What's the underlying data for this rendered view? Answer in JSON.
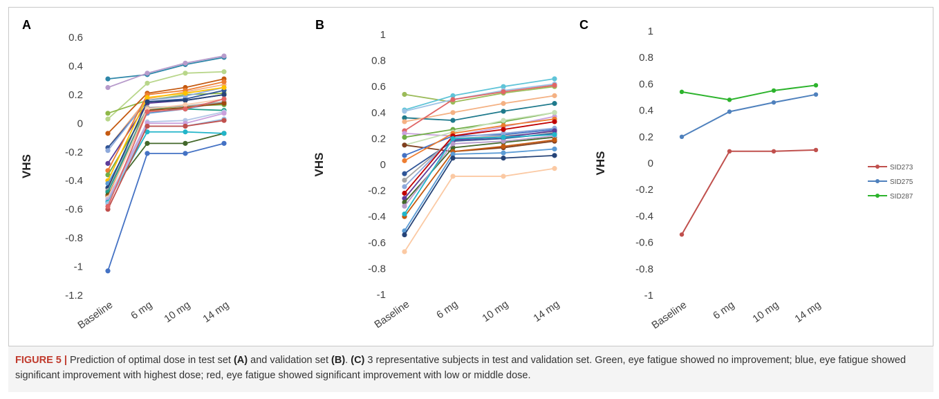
{
  "caption": {
    "label": "FIGURE 5 |",
    "s1": "Prediction of optimal dose in test set ",
    "ref_a": "(A)",
    "s2": " and validation set ",
    "ref_b": "(B)",
    "s3": ". ",
    "ref_c": "(C)",
    "s4": " 3 representative subjects in test and validation set. Green, eye fatigue showed no improvement; blue, eye fatigue showed significant improvement with highest dose; red, eye fatigue showed significant improvement with low or middle dose."
  },
  "chart_data": [
    {
      "panel": "A",
      "type": "line",
      "ylabel": "VHS",
      "ylim": [
        -1.2,
        0.6
      ],
      "ytick_step": 0.2,
      "yticks": [
        "0.6",
        "0.4",
        "0.2",
        "0",
        "-0.2",
        "-0.4",
        "-0.6",
        "-0.8",
        "-1",
        "-1.2"
      ],
      "categories": [
        "Baseline",
        "6 mg",
        "10 mg",
        "14 mg"
      ],
      "grid": false,
      "series": [
        {
          "color": "#2E86A8",
          "values": [
            0.31,
            0.34,
            0.41,
            0.46
          ]
        },
        {
          "color": "#B79BCB",
          "values": [
            0.25,
            0.35,
            0.42,
            0.47
          ]
        },
        {
          "color": "#B8D68A",
          "values": [
            0.03,
            0.28,
            0.35,
            0.36
          ]
        },
        {
          "color": "#8FB849",
          "values": [
            0.07,
            0.16,
            0.2,
            0.21
          ]
        },
        {
          "color": "#C55A11",
          "values": [
            -0.07,
            0.21,
            0.25,
            0.31
          ]
        },
        {
          "color": "#F4B183",
          "values": [
            -0.17,
            0.17,
            0.22,
            0.27
          ]
        },
        {
          "color": "#2F5597",
          "values": [
            -0.17,
            0.15,
            0.17,
            0.23
          ]
        },
        {
          "color": "#8EA9DB",
          "values": [
            -0.19,
            0.16,
            0.19,
            0.25
          ]
        },
        {
          "color": "#5E3C99",
          "values": [
            -0.28,
            0.14,
            0.16,
            0.2
          ]
        },
        {
          "color": "#ED7D31",
          "values": [
            -0.33,
            0.2,
            0.23,
            0.29
          ]
        },
        {
          "color": "#70AD47",
          "values": [
            -0.36,
            0.1,
            0.12,
            0.13
          ]
        },
        {
          "color": "#FFC000",
          "values": [
            -0.4,
            0.18,
            0.21,
            0.25
          ]
        },
        {
          "color": "#5B9BD5",
          "values": [
            -0.42,
            0.07,
            0.1,
            0.15
          ]
        },
        {
          "color": "#264478",
          "values": [
            -0.45,
            0.15,
            0.16,
            0.2
          ]
        },
        {
          "color": "#A5A5A5",
          "values": [
            -0.47,
            0.11,
            0.12,
            0.15
          ]
        },
        {
          "color": "#1F9E89",
          "values": [
            -0.48,
            0.1,
            0.1,
            0.09
          ]
        },
        {
          "color": "#43682B",
          "values": [
            -0.5,
            -0.14,
            -0.14,
            -0.07
          ]
        },
        {
          "color": "#9E480E",
          "values": [
            -0.51,
            0.09,
            0.11,
            0.14
          ]
        },
        {
          "color": "#F8CBAD",
          "values": [
            -0.52,
            0.1,
            0.13,
            0.17
          ]
        },
        {
          "color": "#B4C7E7",
          "values": [
            -0.53,
            0.01,
            0.02,
            0.08
          ]
        },
        {
          "color": "#C9A0DC",
          "values": [
            -0.54,
            0.0,
            0.0,
            0.07
          ]
        },
        {
          "color": "#22B5C9",
          "values": [
            -0.55,
            -0.06,
            -0.06,
            -0.07
          ]
        },
        {
          "color": "#9DC3E6",
          "values": [
            -0.56,
            -0.02,
            -0.02,
            0.03
          ]
        },
        {
          "color": "#C0504D",
          "values": [
            -0.6,
            -0.02,
            -0.02,
            0.02
          ]
        },
        {
          "color": "#E06666",
          "values": [
            -0.58,
            0.08,
            0.1,
            0.17
          ]
        },
        {
          "color": "#4472C4",
          "values": [
            -1.03,
            -0.21,
            -0.21,
            -0.14
          ]
        }
      ]
    },
    {
      "panel": "B",
      "type": "line",
      "ylabel": "VHS",
      "ylim": [
        -1,
        1
      ],
      "ytick_step": 0.2,
      "yticks": [
        "1",
        "0.8",
        "0.6",
        "0.4",
        "0.2",
        "0",
        "-0.2",
        "-0.4",
        "-0.6",
        "-0.8",
        "-1"
      ],
      "categories": [
        "Baseline",
        "6 mg",
        "10 mg",
        "14 mg"
      ],
      "grid": false,
      "series": [
        {
          "color": "#9BBB59",
          "values": [
            0.54,
            0.48,
            0.55,
            0.6
          ]
        },
        {
          "color": "#5FC4D8",
          "values": [
            0.42,
            0.53,
            0.6,
            0.66
          ]
        },
        {
          "color": "#9DC3E6",
          "values": [
            0.41,
            0.5,
            0.57,
            0.62
          ]
        },
        {
          "color": "#1F7A8C",
          "values": [
            0.36,
            0.34,
            0.41,
            0.47
          ]
        },
        {
          "color": "#F4B183",
          "values": [
            0.33,
            0.4,
            0.47,
            0.53
          ]
        },
        {
          "color": "#E06666",
          "values": [
            0.26,
            0.5,
            0.56,
            0.61
          ]
        },
        {
          "color": "#C9A0DC",
          "values": [
            0.24,
            0.22,
            0.29,
            0.37
          ]
        },
        {
          "color": "#70AD47",
          "values": [
            0.21,
            0.27,
            0.33,
            0.4
          ]
        },
        {
          "color": "#C5E0B4",
          "values": [
            0.15,
            0.25,
            0.34,
            0.4
          ]
        },
        {
          "color": "#7F3F1F",
          "values": [
            0.15,
            0.1,
            0.13,
            0.18
          ]
        },
        {
          "color": "#4472C4",
          "values": [
            0.07,
            0.22,
            0.23,
            0.27
          ]
        },
        {
          "color": "#ED7D31",
          "values": [
            0.03,
            0.24,
            0.3,
            0.35
          ]
        },
        {
          "color": "#2F5597",
          "values": [
            -0.07,
            0.18,
            0.2,
            0.24
          ]
        },
        {
          "color": "#A5A5A5",
          "values": [
            -0.12,
            0.2,
            0.22,
            0.25
          ]
        },
        {
          "color": "#8EA9DB",
          "values": [
            -0.17,
            0.21,
            0.24,
            0.28
          ]
        },
        {
          "color": "#C00000",
          "values": [
            -0.22,
            0.22,
            0.27,
            0.33
          ]
        },
        {
          "color": "#5E3C99",
          "values": [
            -0.26,
            0.19,
            0.21,
            0.26
          ]
        },
        {
          "color": "#43682B",
          "values": [
            -0.29,
            0.13,
            0.17,
            0.21
          ]
        },
        {
          "color": "#B79BCB",
          "values": [
            -0.32,
            0.16,
            0.18,
            0.22
          ]
        },
        {
          "color": "#C55A11",
          "values": [
            -0.4,
            0.1,
            0.14,
            0.19
          ]
        },
        {
          "color": "#22B5C9",
          "values": [
            -0.38,
            0.2,
            0.21,
            0.23
          ]
        },
        {
          "color": "#5B9BD5",
          "values": [
            -0.51,
            0.08,
            0.09,
            0.12
          ]
        },
        {
          "color": "#264478",
          "values": [
            -0.54,
            0.05,
            0.05,
            0.07
          ]
        },
        {
          "color": "#FBC9A3",
          "values": [
            -0.67,
            -0.09,
            -0.09,
            -0.03
          ]
        }
      ]
    },
    {
      "panel": "C",
      "type": "line",
      "ylabel": "VHS",
      "ylim": [
        -1,
        1
      ],
      "ytick_step": 0.2,
      "yticks": [
        "1",
        "0.8",
        "0.6",
        "0.4",
        "0.2",
        "0",
        "-0.2",
        "-0.4",
        "-0.6",
        "-0.8",
        "-1"
      ],
      "categories": [
        "Baseline",
        "6 mg",
        "10 mg",
        "14 mg"
      ],
      "grid": false,
      "legend_position": "right",
      "series": [
        {
          "name": "SID273",
          "color": "#C0504D",
          "values": [
            -0.54,
            0.09,
            0.09,
            0.1
          ]
        },
        {
          "name": "SID275",
          "color": "#4F81BD",
          "values": [
            0.2,
            0.39,
            0.46,
            0.52
          ]
        },
        {
          "name": "SID287",
          "color": "#2CB32C",
          "values": [
            0.54,
            0.48,
            0.55,
            0.59
          ]
        }
      ]
    }
  ]
}
